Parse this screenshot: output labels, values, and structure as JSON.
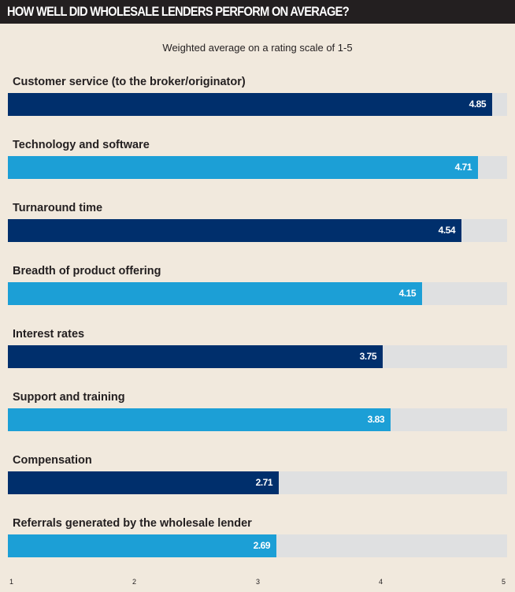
{
  "chart_data": {
    "type": "bar",
    "orientation": "horizontal",
    "title": "HOW WELL DID WHOLESALE LENDERS PERFORM ON AVERAGE?",
    "subtitle": "Weighted average on a rating scale of 1-5",
    "categories": [
      "Customer service (to the broker/originator)",
      "Technology and software",
      "Turnaround time",
      "Breadth of product offering",
      "Interest rates",
      "Support and training",
      "Compensation",
      "Referrals generated by the wholesale lender"
    ],
    "values": [
      4.85,
      4.71,
      4.54,
      4.15,
      3.75,
      3.83,
      2.71,
      2.69
    ],
    "value_labels": [
      "4.85",
      "4.71",
      "4.54",
      "4.15",
      "3.75",
      "3.83",
      "2.71",
      "2.69"
    ],
    "xlabel": "",
    "ylabel": "",
    "xlim": [
      0,
      5
    ],
    "x_ticks": [
      "1",
      "2",
      "3",
      "4",
      "5"
    ],
    "grid": false,
    "legend": "none",
    "colors": {
      "primary": "#002f6c",
      "secondary": "#1c9fd6",
      "track": "#dfe0e1",
      "header_bg": "#231f20",
      "background": "#f1e9dd"
    }
  }
}
